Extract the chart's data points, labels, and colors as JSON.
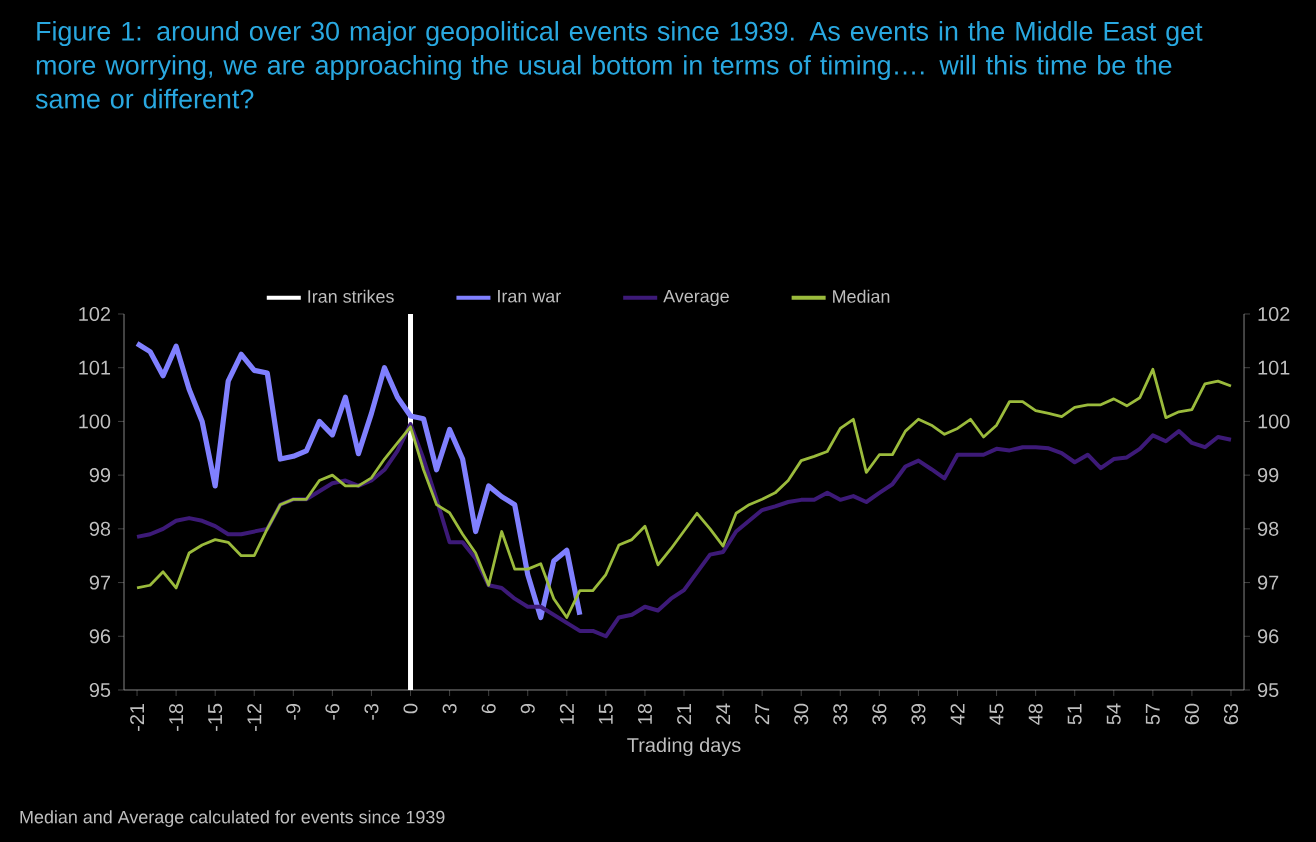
{
  "chart_data": {
    "type": "line",
    "title": "Figure 1: around over 30 major geopolitical events since 1939. As events in the Middle East get more worrying, we are approaching the usual bottom in terms of timing…. will this time be the same or different?",
    "xlabel": "Trading days",
    "annotations": [
      "Median and Average calculated for events since 1939"
    ],
    "x": [
      -21,
      -20,
      -19,
      -18,
      -17,
      -16,
      -15,
      -14,
      -13,
      -12,
      -11,
      -10,
      -9,
      -8,
      -7,
      -6,
      -5,
      -4,
      -3,
      -2,
      -1,
      0,
      1,
      2,
      3,
      4,
      5,
      6,
      7,
      8,
      9,
      10,
      11,
      12,
      13,
      14,
      15,
      16,
      17,
      18,
      19,
      20,
      21,
      22,
      23,
      24,
      25,
      26,
      27,
      28,
      29,
      30,
      31,
      32,
      33,
      34,
      35,
      36,
      37,
      38,
      39,
      40,
      41,
      42,
      43,
      44,
      45,
      46,
      47,
      48,
      49,
      50,
      51,
      52,
      53,
      54,
      55,
      56,
      57,
      58,
      59,
      60,
      61,
      62,
      63
    ],
    "series": [
      {
        "name": "Iran war",
        "color": "#8080ff",
        "values": [
          101.45,
          101.3,
          100.85,
          101.4,
          100.6,
          100.0,
          98.8,
          100.75,
          101.25,
          100.95,
          100.9,
          99.3,
          99.35,
          99.45,
          100.0,
          99.75,
          100.45,
          99.4,
          100.15,
          101.0,
          100.45,
          100.1,
          100.05,
          99.1,
          99.85,
          99.3,
          97.95,
          98.8,
          98.6,
          98.45,
          97.15,
          96.35,
          97.4,
          97.6,
          96.4,
          null,
          null,
          null,
          null,
          null,
          null,
          null,
          null,
          null,
          null,
          null,
          null,
          null,
          null,
          null,
          null,
          null,
          null,
          null,
          null,
          null,
          null,
          null,
          null,
          null,
          null,
          null,
          null,
          null,
          null,
          null,
          null,
          null,
          null,
          null,
          null,
          null,
          null,
          null,
          null,
          null,
          null,
          null,
          null,
          null,
          null,
          null,
          null,
          null,
          null
        ]
      },
      {
        "name": "Average",
        "color": "#3d1a78",
        "values": [
          97.85,
          97.9,
          98.0,
          98.15,
          98.2,
          98.15,
          98.05,
          97.9,
          97.9,
          97.95,
          98.0,
          98.45,
          98.55,
          98.55,
          98.7,
          98.85,
          98.9,
          98.8,
          98.9,
          99.1,
          99.45,
          99.95,
          99.3,
          98.55,
          97.75,
          97.75,
          97.45,
          96.95,
          96.9,
          96.7,
          96.55,
          96.55,
          96.4,
          96.25,
          96.1,
          96.1,
          96.0,
          96.35,
          96.4,
          96.55,
          96.48,
          96.7,
          96.86,
          97.19,
          97.52,
          97.57,
          97.95,
          98.15,
          98.35,
          98.42,
          98.5,
          98.54,
          98.54,
          98.67,
          98.54,
          98.61,
          98.5,
          98.67,
          98.83,
          99.16,
          99.27,
          99.11,
          98.94,
          99.38,
          99.38,
          99.38,
          99.49,
          99.46,
          99.52,
          99.52,
          99.5,
          99.41,
          99.24,
          99.38,
          99.13,
          99.3,
          99.33,
          99.49,
          99.74,
          99.63,
          99.82,
          99.6,
          99.52,
          99.71,
          99.66
        ]
      },
      {
        "name": "Median",
        "color": "#9bbb3c",
        "values": [
          96.9,
          96.95,
          97.2,
          96.9,
          97.55,
          97.7,
          97.8,
          97.75,
          97.5,
          97.5,
          98.0,
          98.45,
          98.55,
          98.55,
          98.9,
          99.0,
          98.8,
          98.8,
          98.95,
          99.3,
          99.6,
          99.9,
          99.1,
          98.45,
          98.3,
          97.9,
          97.55,
          96.95,
          97.95,
          97.25,
          97.25,
          97.35,
          96.7,
          96.35,
          96.85,
          96.85,
          97.15,
          97.7,
          97.8,
          98.05,
          97.33,
          97.63,
          97.96,
          98.29,
          98.0,
          97.68,
          98.29,
          98.45,
          98.55,
          98.67,
          98.9,
          99.27,
          99.35,
          99.44,
          99.87,
          100.04,
          99.05,
          99.38,
          99.38,
          99.82,
          100.04,
          99.93,
          99.76,
          99.87,
          100.04,
          99.71,
          99.93,
          100.37,
          100.37,
          100.2,
          100.15,
          100.09,
          100.26,
          100.31,
          100.31,
          100.42,
          100.29,
          100.44,
          100.97,
          100.07,
          100.18,
          100.22,
          100.7,
          100.75,
          100.66
        ]
      }
    ],
    "ref_lines": [
      {
        "axis": "x",
        "value": 0,
        "label": "Iran strikes",
        "color": "#ffffff"
      }
    ],
    "xlim": [
      -22,
      64
    ],
    "xticks": [
      -21,
      -18,
      -15,
      -12,
      -9,
      -6,
      -3,
      0,
      3,
      6,
      9,
      12,
      15,
      18,
      21,
      24,
      27,
      30,
      33,
      36,
      39,
      42,
      45,
      48,
      51,
      54,
      57,
      60,
      63
    ],
    "ylim": [
      95,
      102
    ],
    "yticks": [
      95,
      96,
      97,
      98,
      99,
      100,
      101,
      102
    ],
    "y2lim": [
      95,
      102
    ],
    "y2ticks": [
      95,
      96,
      97,
      98,
      99,
      100,
      101,
      102
    ],
    "legend": "top"
  }
}
